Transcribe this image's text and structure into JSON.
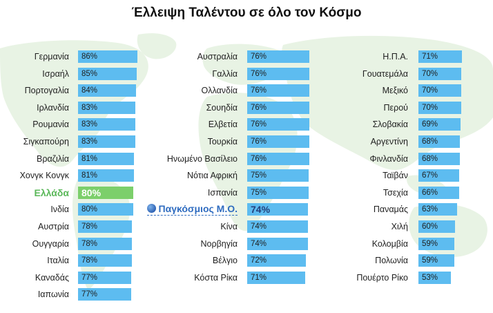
{
  "chart_data": {
    "type": "bar",
    "title": "Έλλειψη Ταλέντου σε όλο τον Κόσμο",
    "unit": "%",
    "colors": {
      "bar": "#5dbcf0",
      "greece": "#7ccf6b",
      "global": "#2f6cc0"
    },
    "columns": [
      {
        "series": [
          {
            "label": "Γερμανία",
            "value": 86
          },
          {
            "label": "Ισραήλ",
            "value": 85
          },
          {
            "label": "Πορτογαλία",
            "value": 84
          },
          {
            "label": "Ιρλανδία",
            "value": 83
          },
          {
            "label": "Ρουμανία",
            "value": 83
          },
          {
            "label": "Σιγκαπούρη",
            "value": 83
          },
          {
            "label": "Βραζιλία",
            "value": 81
          },
          {
            "label": "Χονγκ Κονγκ",
            "value": 81
          },
          {
            "label": "Ελλάδα",
            "value": 80,
            "highlight": "greece"
          },
          {
            "label": "Ινδία",
            "value": 80
          },
          {
            "label": "Αυστρία",
            "value": 78
          },
          {
            "label": "Ουγγαρία",
            "value": 78
          },
          {
            "label": "Ιταλία",
            "value": 78
          },
          {
            "label": "Καναδάς",
            "value": 77
          },
          {
            "label": "Ιαπωνία",
            "value": 77
          }
        ]
      },
      {
        "series": [
          {
            "label": "Αυστραλία",
            "value": 76
          },
          {
            "label": "Γαλλία",
            "value": 76
          },
          {
            "label": "Ολλανδία",
            "value": 76
          },
          {
            "label": "Σουηδία",
            "value": 76
          },
          {
            "label": "Ελβετία",
            "value": 76
          },
          {
            "label": "Τουρκία",
            "value": 76
          },
          {
            "label": "Ηνωμένο Βασίλειο",
            "value": 76
          },
          {
            "label": "Νότια Αφρική",
            "value": 75
          },
          {
            "label": "Ισπανία",
            "value": 75
          },
          {
            "label": "Παγκόσμιος Μ.Ο.",
            "value": 74,
            "highlight": "global"
          },
          {
            "label": "Κίνα",
            "value": 74
          },
          {
            "label": "Νορβηγία",
            "value": 74
          },
          {
            "label": "Βέλγιο",
            "value": 72
          },
          {
            "label": "Κόστα Ρίκα",
            "value": 71
          }
        ]
      },
      {
        "series": [
          {
            "label": "Η.Π.Α.",
            "value": 71
          },
          {
            "label": "Γουατεμάλα",
            "value": 70
          },
          {
            "label": "Μεξικό",
            "value": 70
          },
          {
            "label": "Περού",
            "value": 70
          },
          {
            "label": "Σλοβακία",
            "value": 69
          },
          {
            "label": "Αργεντίνη",
            "value": 68
          },
          {
            "label": "Φινλανδία",
            "value": 68
          },
          {
            "label": "Ταϊβάν",
            "value": 67
          },
          {
            "label": "Τσεχία",
            "value": 66
          },
          {
            "label": "Παναμάς",
            "value": 63
          },
          {
            "label": "Χιλή",
            "value": 60
          },
          {
            "label": "Κολομβία",
            "value": 59
          },
          {
            "label": "Πολωνία",
            "value": 59
          },
          {
            "label": "Πουέρτο Ρίκο",
            "value": 53
          }
        ]
      }
    ]
  }
}
